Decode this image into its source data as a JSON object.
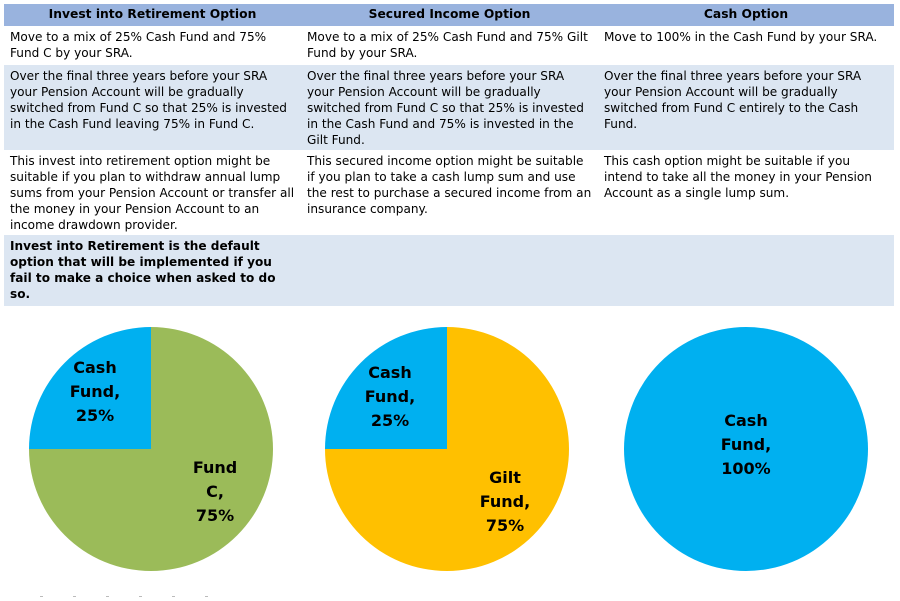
{
  "columns": [
    {
      "header": "Invest into Retirement Option",
      "allocation": "Move to a mix of 25% Cash Fund and 75% Fund C by your SRA.",
      "switching": "Over the final three years before your SRA your Pension Account will be gradually switched from Fund C so that 25% is invested in the Cash Fund leaving 75% in Fund C.",
      "suitability": "This invest into retirement option might be suitable if you plan to withdraw annual lump sums from your Pension Account or transfer all the money in your Pension Account to an income drawdown provider.",
      "note": "Invest into Retirement is the default option that will be implemented if you fail to make a choice when asked to do so."
    },
    {
      "header": "Secured Income Option",
      "allocation": "Move to a mix of 25% Cash Fund and 75% Gilt Fund by your SRA.",
      "switching": "Over the final three years before your SRA your Pension Account will be gradually switched from Fund C so that 25% is invested in the Cash Fund and 75% is invested in the Gilt Fund.",
      "suitability": "This secured income option might be suitable if you plan to take a cash lump sum and use the rest to purchase a secured income from an insurance company.",
      "note": ""
    },
    {
      "header": "Cash Option",
      "allocation": "Move to 100% in the Cash Fund by your SRA.",
      "switching": "Over the final three years before your SRA your Pension Account will be gradually switched from Fund C entirely to the Cash Fund.",
      "suitability": "This cash option might be suitable if you intend to take all the money in your Pension Account as a single lump sum.",
      "note": ""
    }
  ],
  "chart_data": [
    {
      "type": "pie",
      "slices": [
        {
          "label_lines": [
            "Cash",
            "Fund,",
            "25%"
          ],
          "name": "Cash Fund",
          "value": 25,
          "color": "#00b0f0"
        },
        {
          "label_lines": [
            "Fund",
            "C,",
            "75%"
          ],
          "name": "Fund C",
          "value": 75,
          "color": "#9bbb59"
        }
      ]
    },
    {
      "type": "pie",
      "slices": [
        {
          "label_lines": [
            "Cash",
            "Fund,",
            "25%"
          ],
          "name": "Cash Fund",
          "value": 25,
          "color": "#00b0f0"
        },
        {
          "label_lines": [
            "Gilt",
            "Fund,",
            "75%"
          ],
          "name": "Gilt Fund",
          "value": 75,
          "color": "#ffc000"
        }
      ]
    },
    {
      "type": "pie",
      "slices": [
        {
          "label_lines": [
            "Cash",
            "Fund,",
            "100%"
          ],
          "name": "Cash Fund",
          "value": 100,
          "color": "#00b0f0"
        }
      ]
    }
  ]
}
